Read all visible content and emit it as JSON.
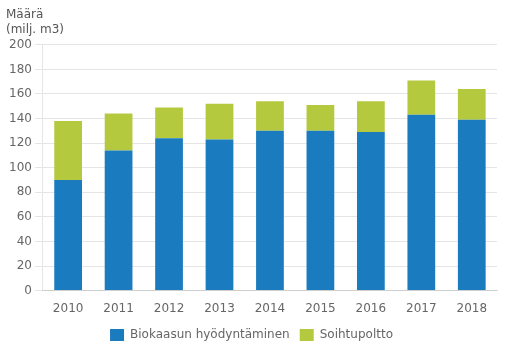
{
  "chart_data": {
    "type": "bar",
    "stacked": true,
    "ylabel": [
      "Määrä",
      "(milj. m3)"
    ],
    "categories": [
      "2010",
      "2011",
      "2012",
      "2013",
      "2014",
      "2015",
      "2016",
      "2017",
      "2018"
    ],
    "series": [
      {
        "name": "Biokaasun hyödyntäminen",
        "color": "#1b7bbf",
        "values": [
          90,
          114,
          124,
          123,
          130,
          130,
          129,
          143,
          139
        ]
      },
      {
        "name": "Soihtupoltto",
        "color": "#b5c93e",
        "values": [
          48,
          30,
          25,
          29,
          24,
          21,
          25,
          28,
          25
        ]
      }
    ],
    "ylim": [
      0,
      200
    ],
    "yticks": [
      0,
      20,
      40,
      60,
      80,
      100,
      120,
      140,
      160,
      180,
      200
    ],
    "grid": true,
    "legend": "bottom"
  }
}
